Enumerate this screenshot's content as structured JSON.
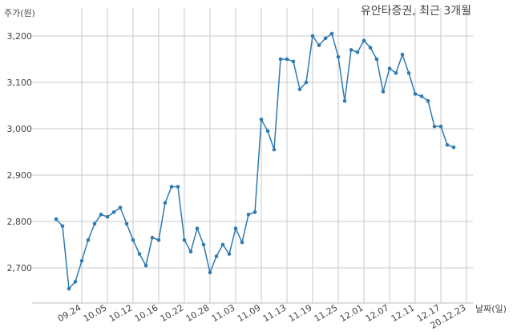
{
  "chart_data": {
    "type": "line",
    "title": "유안타증권, 최근 3개월",
    "ylabel": "주가(원)",
    "xlabel": "날짜(일)",
    "ylim": [
      2620,
      3240
    ],
    "yticks": [
      2700,
      2800,
      2900,
      3000,
      3100,
      3200
    ],
    "ytick_labels": [
      "2,700",
      "2,800",
      "2,900",
      "3,000",
      "3,100",
      "3,200"
    ],
    "xtick_labels": [
      "09.24",
      "10.05",
      "10.12",
      "10.16",
      "10.22",
      "10.28",
      "11.03",
      "11.09",
      "11.13",
      "11.19",
      "11.25",
      "12.01",
      "12.07",
      "12.11",
      "12.17",
      "20.12.23"
    ],
    "xtick_indices": [
      4,
      8,
      12,
      16,
      20,
      24,
      28,
      32,
      36,
      40,
      44,
      48,
      52,
      56,
      60,
      64
    ],
    "grid": true,
    "color": "#2e7ab3",
    "series": [
      {
        "values": [
          2805,
          2790,
          2655,
          2670,
          2715,
          2760,
          2795,
          2815,
          2810,
          2820,
          2830,
          2795,
          2760,
          2730,
          2705,
          2765,
          2760,
          2840,
          2875,
          2875,
          2760,
          2735,
          2785,
          2750,
          2690,
          2725,
          2750,
          2730,
          2785,
          2755,
          2815,
          2820,
          3020,
          2995,
          2955,
          3150,
          3150,
          3145,
          3085,
          3100,
          3200,
          3180,
          3195,
          3205,
          3155,
          3060,
          3170,
          3165,
          3190,
          3175,
          3150,
          3080,
          3130,
          3120,
          3160,
          3120,
          3075,
          3070,
          3060,
          3005,
          3005,
          2965,
          2960
        ]
      }
    ]
  }
}
